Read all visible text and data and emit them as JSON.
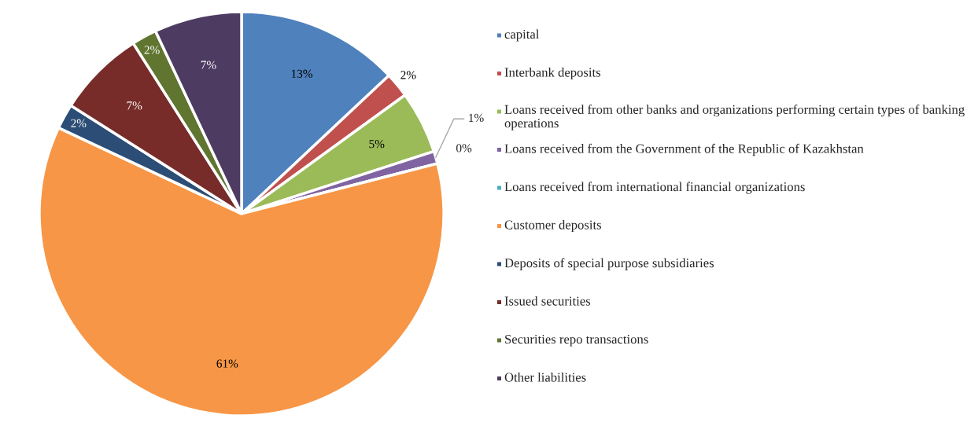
{
  "chart_data": {
    "type": "pie",
    "categories": [
      "capital",
      "Interbank deposits",
      "Loans received from other banks and organizations performing certain types of banking operations",
      "Loans received from the Government of the Republic of Kazakhstan",
      "Loans received from international financial organizations",
      "Customer deposits",
      "Deposits of special purpose subsidiaries",
      "Issued securities",
      "Securities repo transactions",
      "Other liabilities"
    ],
    "values": [
      13,
      2,
      5,
      1,
      0,
      61,
      2,
      7,
      2,
      7
    ],
    "colors": [
      "#4f81bd",
      "#c0504d",
      "#9bbb59",
      "#8064a2",
      "#4bacc6",
      "#f79646",
      "#2c4d75",
      "#772c2a",
      "#5f7530",
      "#4d3b62"
    ],
    "value_labels": [
      "13%",
      "2%",
      "5%",
      "1%",
      "0%",
      "61%",
      "2%",
      "7%",
      "2%",
      "7%"
    ],
    "legend": "right"
  }
}
